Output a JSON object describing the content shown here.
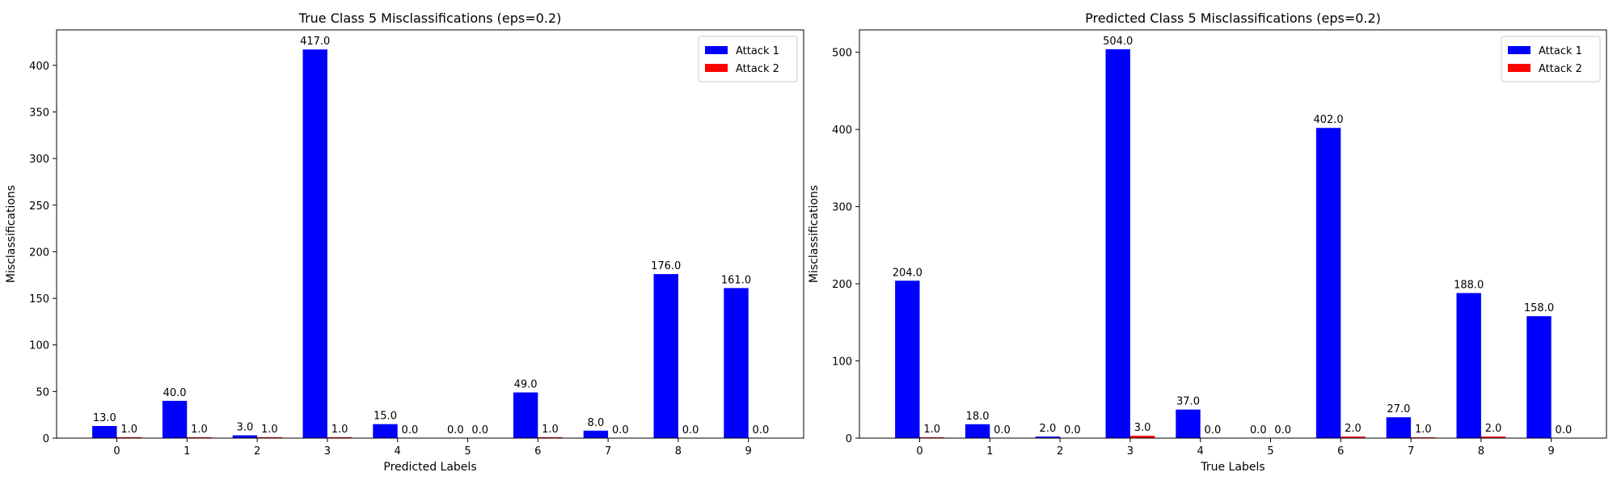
{
  "chart_data": [
    {
      "type": "bar",
      "title": "True Class 5 Misclassifications (eps=0.2)",
      "xlabel": "Predicted Labels",
      "ylabel": "Misclassifications",
      "categories": [
        "0",
        "1",
        "2",
        "3",
        "4",
        "5",
        "6",
        "7",
        "8",
        "9"
      ],
      "series": [
        {
          "name": "Attack 1",
          "color": "#0000ff",
          "values": [
            13,
            40,
            3,
            417,
            15,
            0,
            49,
            8,
            176,
            161
          ]
        },
        {
          "name": "Attack 2",
          "color": "#ff0000",
          "values": [
            1,
            1,
            1,
            1,
            0,
            0,
            1,
            0,
            0,
            0
          ]
        }
      ],
      "ylim": [
        0,
        438
      ],
      "yticks": [
        0,
        50,
        100,
        150,
        200,
        250,
        300,
        350,
        400
      ],
      "legend": "top-right",
      "grid": false
    },
    {
      "type": "bar",
      "title": "Predicted Class 5 Misclassifications (eps=0.2)",
      "xlabel": "True Labels",
      "ylabel": "Misclassifications",
      "categories": [
        "0",
        "1",
        "2",
        "3",
        "4",
        "5",
        "6",
        "7",
        "8",
        "9"
      ],
      "series": [
        {
          "name": "Attack 1",
          "color": "#0000ff",
          "values": [
            204,
            18,
            2,
            504,
            37,
            0,
            402,
            27,
            188,
            158
          ]
        },
        {
          "name": "Attack 2",
          "color": "#ff0000",
          "values": [
            1,
            0,
            0,
            3,
            0,
            0,
            2,
            1,
            2,
            0
          ]
        }
      ],
      "ylim": [
        0,
        529
      ],
      "yticks": [
        0,
        100,
        200,
        300,
        400,
        500
      ],
      "legend": "top-right",
      "grid": false
    }
  ]
}
